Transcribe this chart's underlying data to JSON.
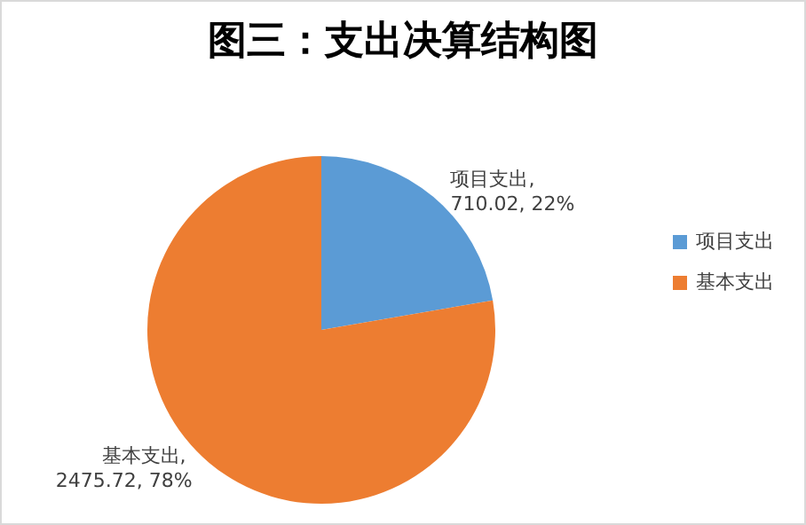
{
  "chart_data": {
    "type": "pie",
    "title": "图三：支出决算结构图",
    "categories": [
      "项目支出",
      "基本支出"
    ],
    "values": [
      710.02,
      2475.72
    ],
    "colors": [
      "#5b9bd5",
      "#ed7d31"
    ],
    "value_labels": [
      "项目支出, 710.02, 22%",
      "基本支出, 2475.72, 78%"
    ],
    "legend": "right"
  }
}
